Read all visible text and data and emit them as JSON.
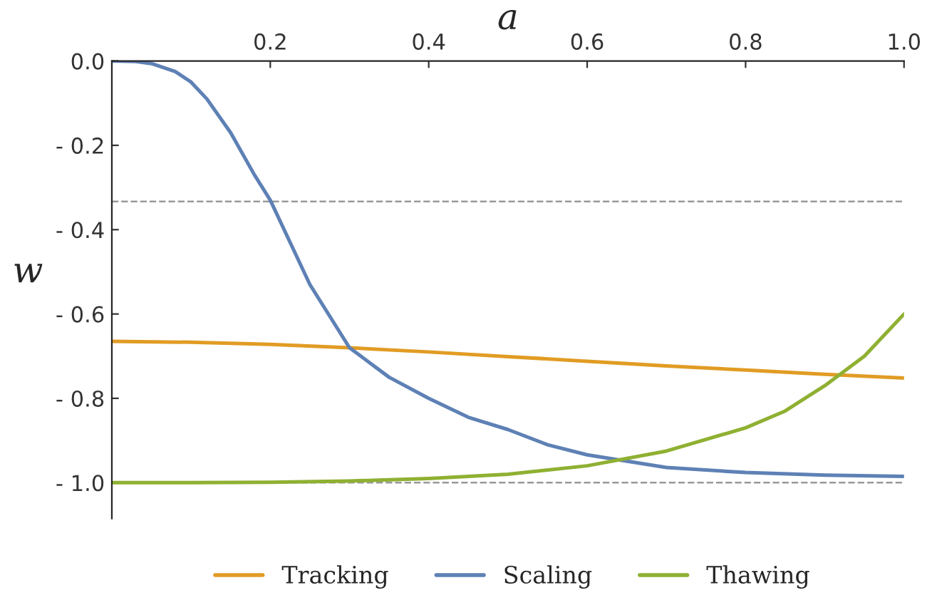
{
  "chart_data": {
    "type": "line",
    "xlabel": "a",
    "ylabel": "w",
    "xlim": [
      0,
      1.0
    ],
    "ylim": [
      -1.085,
      0
    ],
    "xticks": [
      {
        "value": 0.2,
        "label": "0.2"
      },
      {
        "value": 0.4,
        "label": "0.4"
      },
      {
        "value": 0.6,
        "label": "0.6"
      },
      {
        "value": 0.8,
        "label": "0.8"
      },
      {
        "value": 1.0,
        "label": "1.0"
      }
    ],
    "yticks": [
      {
        "value": 0,
        "label": "0.0"
      },
      {
        "value": -0.2,
        "label": "- 0.2"
      },
      {
        "value": -0.4,
        "label": "- 0.4"
      },
      {
        "value": -0.6,
        "label": "- 0.6"
      },
      {
        "value": -0.8,
        "label": "- 0.8"
      },
      {
        "value": -1.0,
        "label": "- 1.0"
      }
    ],
    "grid": false,
    "legend": "bottom",
    "marker": "none",
    "line_style": "solid",
    "ref_lines": [
      {
        "axis": "y",
        "value": -0.333,
        "color": "#999999",
        "line_style": "dashed"
      },
      {
        "axis": "y",
        "value": -1.0,
        "color": "#999999",
        "line_style": "dashed"
      }
    ],
    "series": [
      {
        "name": "Tracking",
        "color": "#e19c24",
        "x": [
          0,
          0.1,
          0.2,
          0.3,
          0.4,
          0.5,
          0.6,
          0.7,
          0.8,
          0.9,
          1.0
        ],
        "values": [
          -0.665,
          -0.667,
          -0.672,
          -0.68,
          -0.69,
          -0.701,
          -0.712,
          -0.723,
          -0.733,
          -0.743,
          -0.752
        ]
      },
      {
        "name": "Scaling",
        "color": "#5e81b5",
        "x": [
          0,
          0.03,
          0.05,
          0.08,
          0.1,
          0.12,
          0.15,
          0.18,
          0.2,
          0.22,
          0.25,
          0.28,
          0.3,
          0.35,
          0.4,
          0.45,
          0.5,
          0.55,
          0.6,
          0.7,
          0.8,
          0.9,
          1.0
        ],
        "values": [
          0,
          -0.001,
          -0.006,
          -0.025,
          -0.05,
          -0.09,
          -0.17,
          -0.27,
          -0.33,
          -0.41,
          -0.53,
          -0.62,
          -0.68,
          -0.75,
          -0.8,
          -0.845,
          -0.874,
          -0.91,
          -0.934,
          -0.964,
          -0.976,
          -0.982,
          -0.985
        ]
      },
      {
        "name": "Thawing",
        "color": "#8fb032",
        "x": [
          0,
          0.1,
          0.2,
          0.3,
          0.4,
          0.5,
          0.6,
          0.7,
          0.8,
          0.85,
          0.9,
          0.95,
          1.0
        ],
        "values": [
          -1.0,
          -1.0,
          -0.999,
          -0.996,
          -0.99,
          -0.98,
          -0.96,
          -0.925,
          -0.87,
          -0.83,
          -0.77,
          -0.7,
          -0.6
        ]
      }
    ]
  }
}
